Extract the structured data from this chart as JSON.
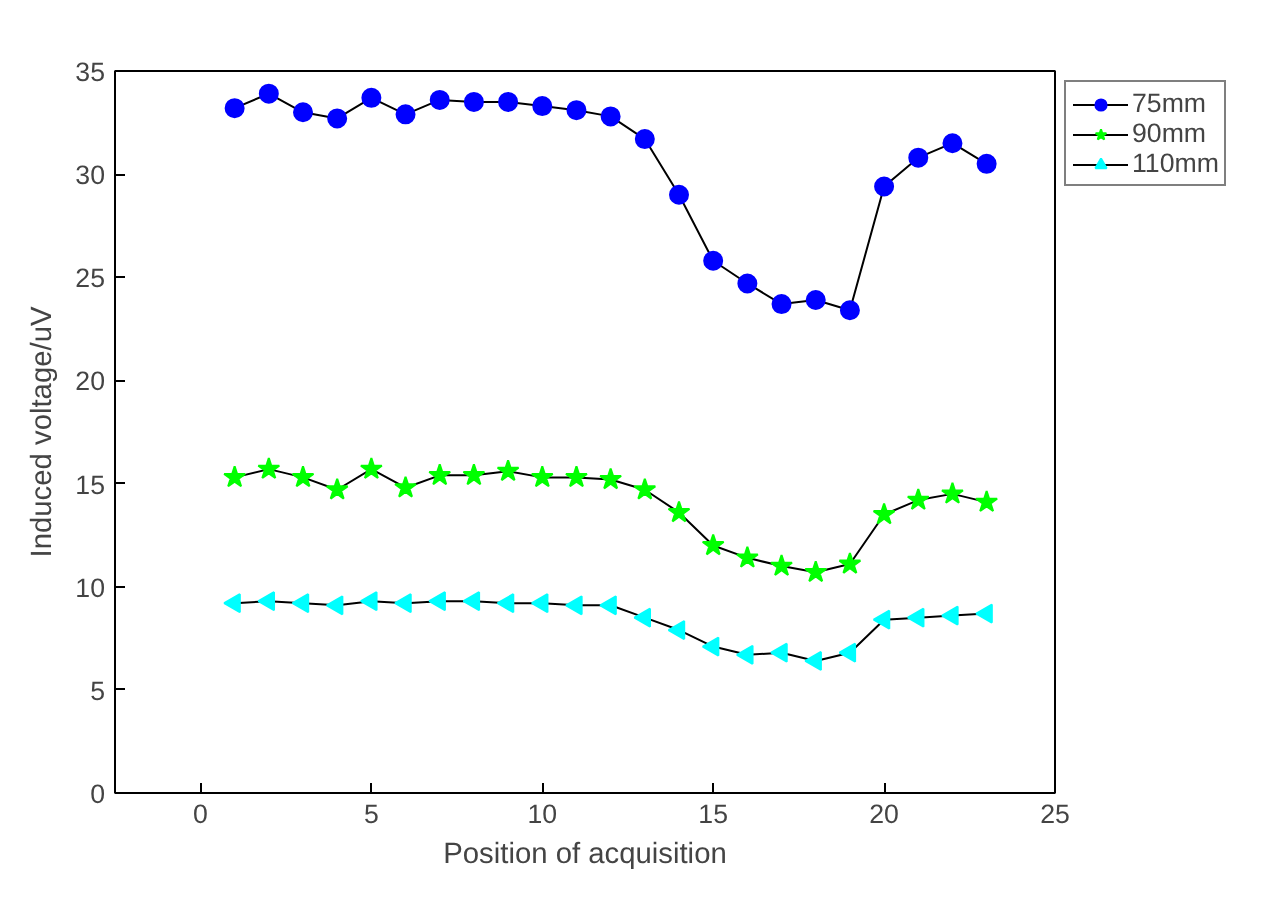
{
  "chart_data": {
    "type": "line",
    "xlabel": "Position of acquisition",
    "ylabel": "Induced voltage/uV",
    "x": [
      1,
      2,
      3,
      4,
      5,
      6,
      7,
      8,
      9,
      10,
      11,
      12,
      13,
      14,
      15,
      16,
      17,
      18,
      19,
      20,
      21,
      22,
      23
    ],
    "series": [
      {
        "name": "75mm",
        "color": "#0000ff",
        "marker": "circle",
        "values": [
          33.2,
          33.9,
          33.0,
          32.7,
          33.7,
          32.9,
          33.6,
          33.5,
          33.5,
          33.3,
          33.1,
          32.8,
          31.7,
          29.0,
          25.8,
          24.7,
          23.7,
          23.9,
          23.4,
          29.4,
          30.8,
          31.5,
          30.5
        ]
      },
      {
        "name": "90mm",
        "color": "#00ff00",
        "marker": "star",
        "values": [
          15.3,
          15.7,
          15.3,
          14.7,
          15.7,
          14.8,
          15.4,
          15.4,
          15.6,
          15.3,
          15.3,
          15.2,
          14.7,
          13.6,
          12.0,
          11.4,
          11.0,
          10.7,
          11.1,
          13.5,
          14.2,
          14.5,
          14.1
        ]
      },
      {
        "name": "110mm",
        "color": "#00ffff",
        "marker": "triangle",
        "values": [
          9.2,
          9.3,
          9.2,
          9.1,
          9.3,
          9.2,
          9.3,
          9.3,
          9.2,
          9.2,
          9.1,
          9.1,
          8.5,
          7.9,
          7.1,
          6.7,
          6.8,
          6.4,
          6.8,
          8.4,
          8.5,
          8.6,
          8.7
        ]
      }
    ],
    "xlim": [
      -2.5,
      25
    ],
    "xticks": [
      0,
      5,
      10,
      15,
      20,
      25
    ],
    "ylim": [
      0,
      35
    ],
    "yticks": [
      0,
      5,
      10,
      15,
      20,
      25,
      30,
      35
    ],
    "grid": false,
    "legend": "top right",
    "line_style": "solid"
  }
}
